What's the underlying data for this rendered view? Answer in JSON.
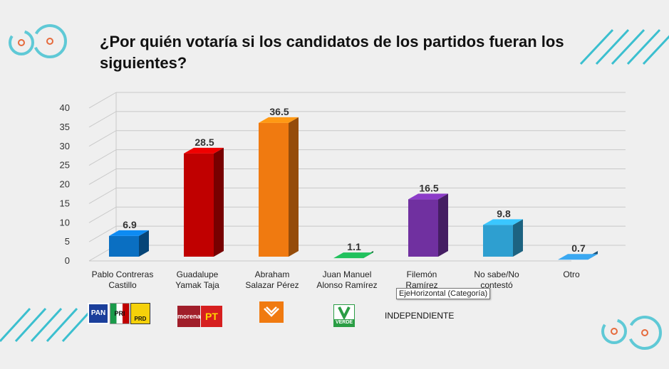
{
  "slide": {
    "title": "¿Por quién votaría si los candidatos de los partidos fueran los siguientes?",
    "tooltip": "EjeHorizontal (Categoría)",
    "independent_label": "INDEPENDIENTE"
  },
  "logos": {
    "pan": "PAN",
    "pri": "PRI",
    "prd": "PRD",
    "morena": "morena",
    "pt": "PT",
    "verde": "VERDE"
  },
  "colors": {
    "background": "#efefef",
    "accent_teal": "#3bbfcf",
    "accent_orange": "#e66a3c"
  },
  "chart_data": {
    "type": "bar",
    "categories": [
      [
        "Pablo Contreras",
        "Castillo"
      ],
      [
        "Guadalupe",
        "Yamak Taja"
      ],
      [
        "Abraham",
        "Salazar Pérez"
      ],
      [
        "Juan Manuel",
        "Alonso Ramírez"
      ],
      [
        "Filemón",
        "Ramírez"
      ],
      [
        "No sabe/No",
        "contestó"
      ],
      [
        "Otro"
      ]
    ],
    "values": [
      6.9,
      28.5,
      36.5,
      1.1,
      16.5,
      9.8,
      0.7
    ],
    "value_labels": [
      "6.9",
      "28.5",
      "36.5",
      "1.1",
      "16.5",
      "9.8",
      "0.7"
    ],
    "colors": [
      "#0a6fc2",
      "#c00000",
      "#f07a10",
      "#1a9a4a",
      "#7030a0",
      "#2e9fd0",
      "#2e86c1"
    ],
    "ylim": [
      0,
      40
    ],
    "yticks": [
      0,
      5,
      10,
      15,
      20,
      25,
      30,
      35,
      40
    ],
    "grid": true,
    "three_d": true
  }
}
